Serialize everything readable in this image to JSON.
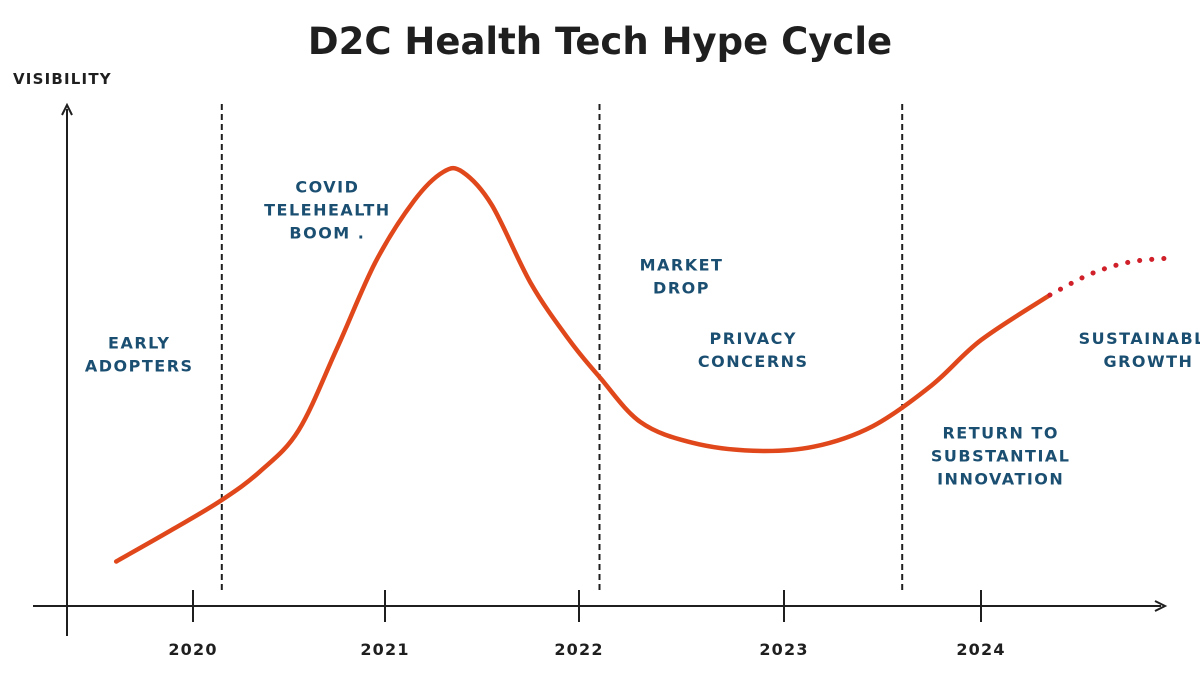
{
  "chart_data": {
    "type": "line",
    "title": "D2C Health Tech Hype Cycle",
    "ylabel": "VISIBILITY",
    "xlabel": "",
    "x_ticks": [
      "2020",
      "2021",
      "2022",
      "2023",
      "2024"
    ],
    "xlim": [
      2019.45,
      2025.0
    ],
    "ylim": [
      0,
      100
    ],
    "grid": false,
    "legend": "none",
    "colors": {
      "curve": "#e0481c",
      "phase_text": "#1b4f72",
      "axis": "#1f1f1f"
    },
    "curve_solid": [
      {
        "x": 2019.6,
        "y": 5
      },
      {
        "x": 2019.9,
        "y": 13
      },
      {
        "x": 2020.15,
        "y": 20
      },
      {
        "x": 2020.35,
        "y": 27
      },
      {
        "x": 2020.55,
        "y": 37
      },
      {
        "x": 2020.75,
        "y": 57
      },
      {
        "x": 2020.95,
        "y": 78
      },
      {
        "x": 2021.15,
        "y": 93
      },
      {
        "x": 2021.3,
        "y": 100
      },
      {
        "x": 2021.4,
        "y": 100
      },
      {
        "x": 2021.55,
        "y": 92
      },
      {
        "x": 2021.75,
        "y": 73
      },
      {
        "x": 2021.95,
        "y": 59
      },
      {
        "x": 2022.1,
        "y": 50
      },
      {
        "x": 2022.3,
        "y": 39
      },
      {
        "x": 2022.55,
        "y": 34
      },
      {
        "x": 2022.85,
        "y": 32
      },
      {
        "x": 2023.15,
        "y": 33
      },
      {
        "x": 2023.45,
        "y": 38
      },
      {
        "x": 2023.75,
        "y": 48
      },
      {
        "x": 2024.0,
        "y": 59
      },
      {
        "x": 2024.35,
        "y": 70
      }
    ],
    "curve_projected": [
      {
        "x": 2024.35,
        "y": 70
      },
      {
        "x": 2024.55,
        "y": 75
      },
      {
        "x": 2024.75,
        "y": 78
      },
      {
        "x": 2024.95,
        "y": 79
      }
    ],
    "dividers": [
      {
        "x": 2020.15
      },
      {
        "x": 2022.1
      },
      {
        "x": 2023.6
      }
    ],
    "phases": [
      {
        "lines": [
          "EARLY",
          "ADOPTERS"
        ],
        "x": 2019.72,
        "y": 57
      },
      {
        "lines": [
          "COVID",
          "TELEHEALTH",
          "BOOM ."
        ],
        "x": 2020.7,
        "y": 95
      },
      {
        "lines": [
          "MARKET",
          "DROP"
        ],
        "x": 2022.5,
        "y": 76
      },
      {
        "lines": [
          "PRIVACY",
          "CONCERNS"
        ],
        "x": 2022.85,
        "y": 58
      },
      {
        "lines": [
          "SUSTAINABLE",
          "GROWTH"
        ],
        "x": 2024.85,
        "y": 58
      },
      {
        "lines": [
          "RETURN TO",
          "SUBSTANTIAL",
          "INNOVATION"
        ],
        "x": 2024.1,
        "y": 35
      }
    ]
  }
}
